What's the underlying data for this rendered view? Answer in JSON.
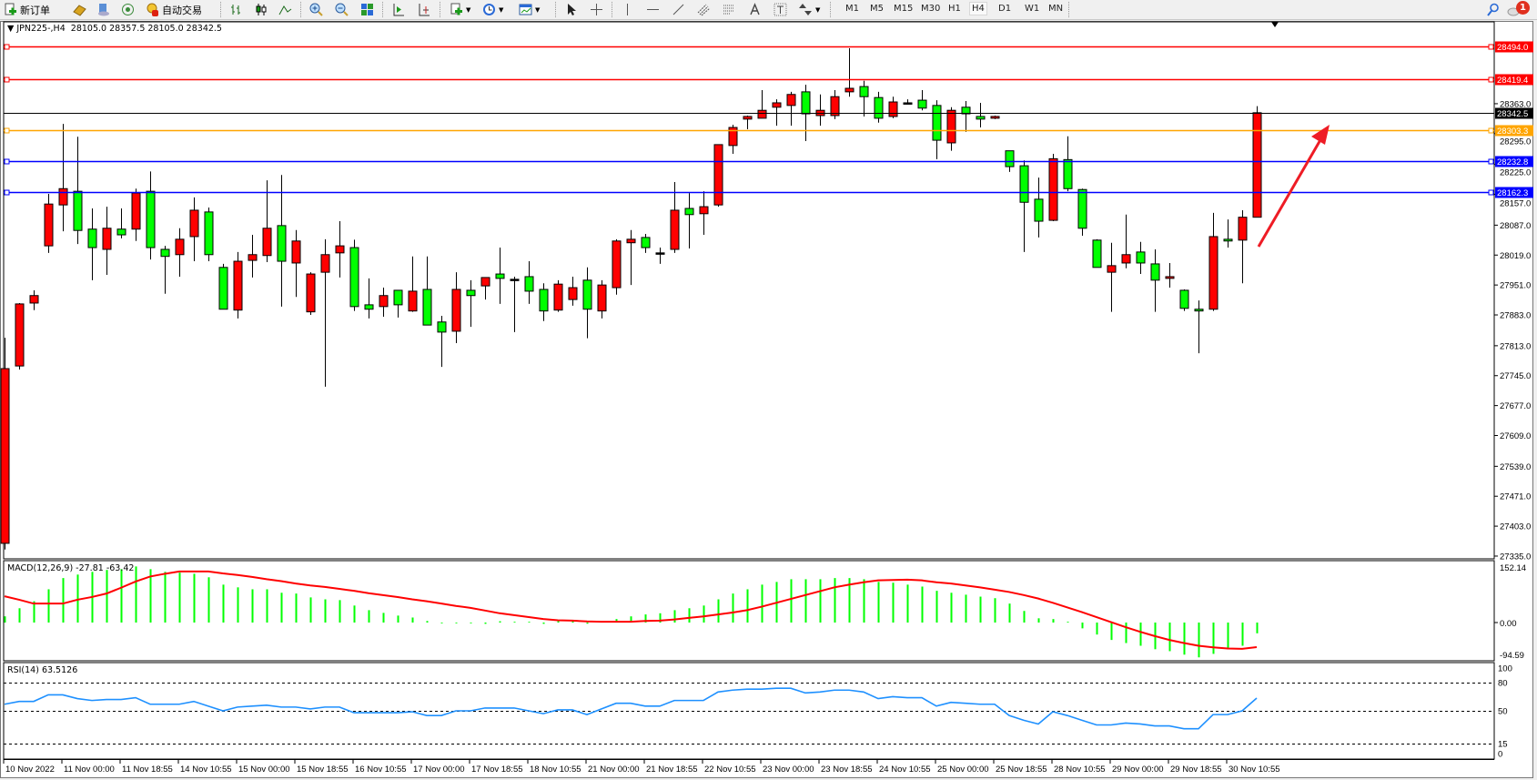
{
  "toolbar": {
    "new_order_label": "新订单",
    "auto_trading_label": "自动交易",
    "timeframes": [
      "M1",
      "M5",
      "M15",
      "M30",
      "H1",
      "H4",
      "D1",
      "W1",
      "MN"
    ],
    "active_timeframe": "H4",
    "notification_count": "1",
    "icons": [
      "new-order-icon",
      "gold-icon",
      "history-center-icon",
      "signals-icon",
      "auto-trading-icon",
      "bar-chart-icon",
      "candlestick-icon",
      "line-chart-icon",
      "zoom-in-icon",
      "zoom-out-icon",
      "tile-windows-icon",
      "auto-scroll-icon",
      "chart-shift-icon",
      "indicators-icon",
      "periods-icon",
      "templates-icon",
      "cursor-icon",
      "crosshair-icon",
      "vertical-line-icon",
      "horizontal-line-icon",
      "trendline-icon",
      "fibonacci-channel-icon",
      "fibonacci-icon",
      "text-icon",
      "text-label-icon",
      "arrows-icon",
      "search-icon",
      "notification-icon"
    ]
  },
  "chart": {
    "header": "JPN225-,H4  28105.0 28357.5 28105.0 28342.5",
    "macd_title": "MACD(12,26,9) -27.81 -63.42",
    "rsi_title": "RSI(14) 63.5126"
  },
  "chart_data": [
    {
      "type": "candlestick",
      "symbol": "JPN225-",
      "timeframe": "H4",
      "ohlc_fields": [
        "open",
        "high",
        "low",
        "close"
      ],
      "bull_color": "#ff0000",
      "bear_color": "#00ff00",
      "candles": [
        [
          27364,
          27831,
          27350,
          27761
        ],
        [
          27767,
          27910,
          27759,
          27908
        ],
        [
          27910,
          27939,
          27894,
          27927
        ],
        [
          28040,
          28158,
          28024,
          28135
        ],
        [
          28133,
          28317,
          28073,
          28170
        ],
        [
          28164,
          28288,
          28044,
          28075
        ],
        [
          28078,
          28125,
          27962,
          28036
        ],
        [
          28032,
          28129,
          27974,
          28080
        ],
        [
          28078,
          28125,
          28057,
          28065
        ],
        [
          28078,
          28170,
          28051,
          28160
        ],
        [
          28164,
          28209,
          28009,
          28036
        ],
        [
          28032,
          28040,
          27931,
          28016
        ],
        [
          28020,
          28080,
          27970,
          28055
        ],
        [
          28061,
          28150,
          28005,
          28121
        ],
        [
          28117,
          28127,
          28005,
          28020
        ],
        [
          27991,
          27999,
          27896,
          27896
        ],
        [
          27894,
          28026,
          27875,
          28005
        ],
        [
          28007,
          28065,
          27968,
          28020
        ],
        [
          28018,
          28189,
          28003,
          28080
        ],
        [
          28086,
          28201,
          27902,
          28005
        ],
        [
          28001,
          28076,
          27924,
          28051
        ],
        [
          27890,
          27980,
          27883,
          27976
        ],
        [
          27980,
          28055,
          27720,
          28020
        ],
        [
          28024,
          28096,
          27968,
          28040
        ],
        [
          28036,
          28054,
          27892,
          27902
        ],
        [
          27906,
          27966,
          27875,
          27896
        ],
        [
          27902,
          27945,
          27879,
          27927
        ],
        [
          27939,
          27939,
          27877,
          27906
        ],
        [
          27892,
          28016,
          27890,
          27937
        ],
        [
          27941,
          28016,
          27860,
          27860
        ],
        [
          27867,
          27881,
          27765,
          27844
        ],
        [
          27846,
          27980,
          27819,
          27941
        ],
        [
          27939,
          27962,
          27856,
          27927
        ],
        [
          27949,
          27968,
          27918,
          27968
        ],
        [
          27976,
          28036,
          27908,
          27966
        ],
        [
          27964,
          27970,
          27844,
          27964
        ],
        [
          27970,
          28005,
          27908,
          27937
        ],
        [
          27941,
          27955,
          27869,
          27892
        ],
        [
          27894,
          27962,
          27890,
          27953
        ],
        [
          27918,
          27970,
          27904,
          27945
        ],
        [
          27962,
          27991,
          27830,
          27896
        ],
        [
          27892,
          27962,
          27875,
          27951
        ],
        [
          27945,
          28055,
          27929,
          28051
        ],
        [
          28047,
          28076,
          27951,
          28055
        ],
        [
          28059,
          28067,
          28024,
          28036
        ],
        [
          28022,
          28036,
          27999,
          28024
        ],
        [
          28032,
          28185,
          28024,
          28121
        ],
        [
          28125,
          28160,
          28034,
          28111
        ],
        [
          28113,
          28164,
          28065,
          28129
        ],
        [
          28133,
          28270,
          28129,
          28270
        ],
        [
          28268,
          28315,
          28249,
          28309
        ],
        [
          28328,
          28336,
          28305,
          28334
        ],
        [
          28330,
          28394,
          28330,
          28348
        ],
        [
          28355,
          28373,
          28313,
          28365
        ],
        [
          28359,
          28390,
          28313,
          28384
        ],
        [
          28390,
          28406,
          28278,
          28340
        ],
        [
          28336,
          28384,
          28313,
          28348
        ],
        [
          28336,
          28394,
          28328,
          28379
        ],
        [
          28390,
          28489,
          28379,
          28398
        ],
        [
          28402,
          28415,
          28334,
          28379
        ],
        [
          28377,
          28390,
          28320,
          28330
        ],
        [
          28334,
          28379,
          28330,
          28367
        ],
        [
          28365,
          28373,
          28363,
          28363
        ],
        [
          28371,
          28394,
          28348,
          28353
        ],
        [
          28359,
          28371,
          28237,
          28280
        ],
        [
          28274,
          28355,
          28256,
          28348
        ],
        [
          28355,
          28369,
          28299,
          28340
        ],
        [
          28334,
          28365,
          28309,
          28328
        ],
        [
          28330,
          28336,
          28328,
          28334
        ],
        [
          28256,
          28256,
          28208,
          28220
        ],
        [
          28222,
          28234,
          28026,
          28139
        ],
        [
          28146,
          28195,
          28059,
          28096
        ],
        [
          28098,
          28249,
          28096,
          28238
        ],
        [
          28236,
          28289,
          28164,
          28170
        ],
        [
          28168,
          28170,
          28063,
          28080
        ],
        [
          28053,
          28055,
          27991,
          27991
        ],
        [
          27980,
          28047,
          27890,
          27995
        ],
        [
          28001,
          28111,
          27989,
          28020
        ],
        [
          28026,
          28049,
          27976,
          28001
        ],
        [
          27999,
          28032,
          27890,
          27962
        ],
        [
          27966,
          28001,
          27945,
          27970
        ],
        [
          27939,
          27941,
          27892,
          27898
        ],
        [
          27896,
          27916,
          27796,
          27892
        ],
        [
          27896,
          28115,
          27892,
          28061
        ],
        [
          28055,
          28100,
          28036,
          28051
        ],
        [
          28053,
          28121,
          27955,
          28105
        ],
        [
          28105,
          28357.5,
          28105,
          28342.5
        ]
      ],
      "price_axis_ticks": [
        "28363.0",
        "28295.0",
        "28225.0",
        "28157.0",
        "28087.0",
        "28019.0",
        "27951.0",
        "27883.0",
        "27813.0",
        "27745.0",
        "27677.0",
        "27609.0",
        "27539.0",
        "27471.0",
        "27403.0",
        "27335.0"
      ],
      "current_price": {
        "value": 28342.5,
        "label": "28342.5",
        "color": "#000000"
      },
      "horizontal_levels": [
        {
          "value": 28494.0,
          "label": "28494.0",
          "color": "#ff0000"
        },
        {
          "value": 28419.4,
          "label": "28419.4",
          "color": "#ff0000"
        },
        {
          "value": 28303.3,
          "label": "28303.3",
          "color": "#ffa500"
        },
        {
          "value": 28232.8,
          "label": "28232.8",
          "color": "#0000ff"
        },
        {
          "value": 28162.3,
          "label": "28162.3",
          "color": "#0000ff"
        }
      ],
      "annotation": {
        "type": "arrow",
        "color": "#ee1c25",
        "direction": "up-right"
      },
      "time_labels": [
        "10 Nov 2022",
        "11 Nov 00:00",
        "11 Nov 18:55",
        "14 Nov 10:55",
        "15 Nov 00:00",
        "15 Nov 18:55",
        "16 Nov 10:55",
        "17 Nov 00:00",
        "17 Nov 18:55",
        "18 Nov 10:55",
        "21 Nov 00:00",
        "21 Nov 18:55",
        "22 Nov 10:55",
        "23 Nov 00:00",
        "23 Nov 18:55",
        "24 Nov 10:55",
        "25 Nov 00:00",
        "25 Nov 18:55",
        "28 Nov 10:55",
        "29 Nov 00:00",
        "29 Nov 18:55",
        "30 Nov 10:55"
      ]
    },
    {
      "type": "bar",
      "indicator": "MACD(12,26,9)",
      "histogram_color": "#00ff00",
      "signal_color": "#ff0000",
      "axis_labels": [
        "152.14",
        "0.00",
        "-94.59"
      ],
      "ylim": [
        -94.59,
        152.14
      ],
      "macd": [
        16,
        37,
        55,
        86,
        115,
        124,
        131,
        136,
        138,
        145,
        138,
        131,
        129,
        126,
        117,
        98,
        91,
        86,
        86,
        77,
        75,
        65,
        60,
        58,
        44,
        32,
        25,
        18,
        13,
        4,
        -2,
        -2,
        -2,
        -1,
        1,
        2,
        2,
        -1,
        1,
        1,
        -3,
        2,
        9,
        16,
        21,
        24,
        32,
        37,
        44,
        60,
        75,
        86,
        98,
        105,
        112,
        112,
        112,
        115,
        115,
        112,
        105,
        103,
        98,
        93,
        82,
        77,
        72,
        67,
        63,
        49,
        30,
        11,
        9,
        2,
        -15,
        -31,
        -45,
        -53,
        -60,
        -69,
        -74,
        -83,
        -90,
        -81,
        -67,
        -60,
        -27.81
      ],
      "signal": [
        68,
        59,
        49,
        49,
        49,
        59,
        66,
        75,
        90,
        106,
        119,
        126,
        132,
        132,
        132,
        127,
        123,
        118,
        112,
        107,
        101,
        96,
        92,
        87,
        82,
        76,
        71,
        66,
        60,
        55,
        49,
        43,
        38,
        31,
        24,
        19,
        14,
        9,
        6,
        5,
        3,
        2,
        2,
        2,
        4,
        5,
        8,
        12,
        16,
        21,
        26,
        32,
        41,
        51,
        61,
        71,
        81,
        91,
        98,
        104,
        109,
        110,
        111,
        109,
        104,
        101,
        96,
        91,
        85,
        79,
        71,
        62,
        51,
        39,
        27,
        14,
        1,
        -12,
        -24,
        -35,
        -45,
        -53,
        -60,
        -64,
        -67,
        -68,
        -63.42
      ]
    },
    {
      "type": "line",
      "indicator": "RSI(14)",
      "line_color": "#1e90ff",
      "levels": [
        80,
        50,
        15
      ],
      "axis_labels": [
        "100",
        "80",
        "50",
        "15",
        "0"
      ],
      "ylim": [
        0,
        100
      ],
      "values": [
        57,
        60,
        60,
        67,
        67,
        63,
        61,
        62,
        62,
        64,
        57,
        57,
        57,
        60,
        55,
        50,
        54,
        55,
        56,
        54,
        54,
        52,
        54,
        54,
        48,
        48,
        48,
        48,
        49,
        45,
        45,
        50,
        50,
        53,
        53,
        53,
        50,
        47,
        51,
        51,
        46,
        52,
        58,
        58,
        55,
        55,
        61,
        61,
        61,
        70,
        72,
        73,
        73,
        74,
        74,
        69,
        70,
        72,
        72,
        70,
        63,
        65,
        64,
        64,
        55,
        59,
        58,
        57,
        57,
        45,
        40,
        36,
        49,
        45,
        40,
        35,
        35,
        37,
        36,
        34,
        34,
        31,
        31,
        46,
        46,
        50,
        63.5126
      ]
    }
  ]
}
